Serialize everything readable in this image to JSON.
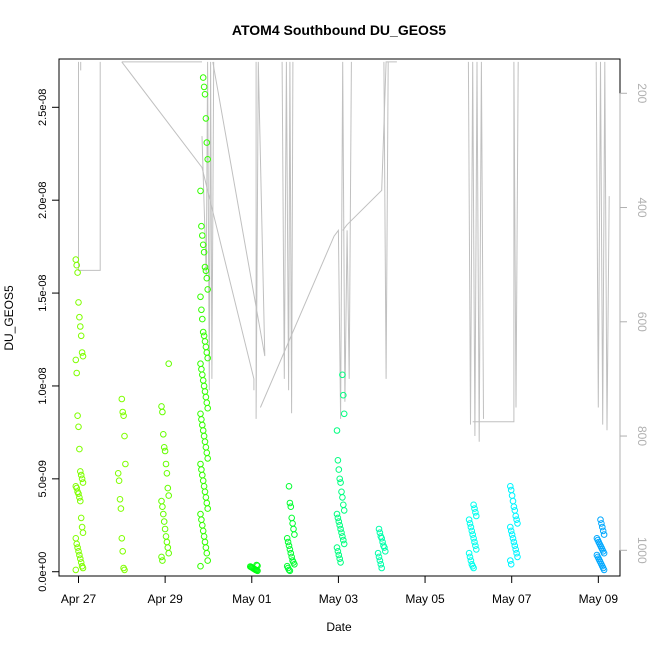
{
  "chart_data": {
    "type": "scatter",
    "title": "ATOM4 Southbound DU_GEOS5",
    "xlabel": "Date",
    "ylabel": "DU_GEOS5",
    "x_tick_labels": [
      "Apr 27",
      "Apr 29",
      "May 01",
      "May 03",
      "May 05",
      "May 07",
      "May 09"
    ],
    "y_tick_labels": [
      "0.0e+00",
      "5.0e-09",
      "1.0e-08",
      "1.5e-08",
      "2.0e-08",
      "2.5e-08"
    ],
    "y_tick_values": [
      0,
      5e-09,
      1e-08,
      1.5e-08,
      2e-08,
      2.5e-08
    ],
    "y2_tick_labels": [
      "200",
      "400",
      "600",
      "800",
      "1000"
    ],
    "y2_tick_values": [
      200,
      400,
      600,
      800,
      1000
    ],
    "xlim_days_from_apr27": [
      -0.45,
      12.5
    ],
    "ylim": [
      -2.3e-10,
      2.76e-08
    ],
    "y2lim": [
      1045,
      140
    ],
    "clusters": [
      {
        "day": 0.02,
        "color": "#7fff00",
        "values": [
          1.68e-08,
          1.65e-08,
          1.61e-08,
          1.45e-08,
          1.37e-08,
          1.32e-08,
          1.27e-08,
          1.18e-08,
          1.16e-08,
          1.14e-08,
          1.07e-08,
          8.4e-09,
          7.8e-09,
          6.6e-09,
          5.4e-09,
          5.2e-09,
          5e-09,
          4.8e-09,
          4.6e-09,
          4.5e-09,
          4.3e-09,
          4.2e-09,
          4e-09,
          3.8e-09,
          2.9e-09,
          2.4e-09,
          2.1e-09,
          1.8e-09,
          1.5e-09,
          1.3e-09,
          1.1e-09,
          9e-10,
          7e-10,
          5e-10,
          3e-10,
          2e-10,
          1e-10
        ]
      },
      {
        "day": 1.0,
        "color": "#7fff00",
        "values": [
          9.3e-09,
          8.6e-09,
          8.4e-09,
          7.3e-09,
          5.8e-09,
          5.3e-09,
          4.9e-09,
          3.9e-09,
          3.4e-09,
          1.8e-09,
          1.1e-09,
          2e-10,
          1e-10
        ]
      },
      {
        "day": 2.0,
        "color": "#66ff00",
        "values": [
          1.12e-08,
          8.9e-09,
          8.6e-09,
          7.4e-09,
          6.7e-09,
          6.5e-09,
          5.8e-09,
          5.3e-09,
          4.5e-09,
          4.1e-09,
          3.8e-09,
          3.5e-09,
          3.1e-09,
          2.7e-09,
          2.3e-09,
          1.9e-09,
          1.6e-09,
          1.3e-09,
          1e-09,
          8e-10,
          6e-10
        ]
      },
      {
        "day": 2.9,
        "color": "#33ff00",
        "values": [
          2.66e-08,
          2.61e-08,
          2.57e-08,
          2.44e-08,
          2.31e-08,
          2.22e-08,
          2.05e-08,
          1.86e-08,
          1.81e-08,
          1.76e-08,
          1.72e-08,
          1.64e-08,
          1.62e-08,
          1.58e-08,
          1.52e-08,
          1.48e-08,
          1.41e-08,
          1.36e-08,
          1.29e-08,
          1.27e-08,
          1.24e-08,
          1.21e-08,
          1.18e-08,
          1.15e-08,
          1.12e-08,
          1.09e-08,
          1.06e-08,
          1.03e-08,
          1e-08,
          9.7e-09,
          9.4e-09,
          9.1e-09,
          8.8e-09,
          8.5e-09,
          8.2e-09,
          7.9e-09,
          7.6e-09,
          7.3e-09,
          7e-09,
          6.7e-09,
          6.4e-09,
          6.1e-09,
          5.8e-09,
          5.5e-09,
          5.2e-09,
          4.9e-09,
          4.6e-09,
          4.3e-09,
          4e-09,
          3.7e-09,
          3.4e-09,
          3.1e-09,
          2.8e-09,
          2.5e-09,
          2.2e-09,
          1.9e-09,
          1.6e-09,
          1.3e-09,
          1e-09,
          6e-10,
          3e-10
        ]
      },
      {
        "day": 4.05,
        "color": "#00ff10",
        "values": [
          3.6e-10,
          3.2e-10,
          2.8e-10,
          2.5e-10,
          2.2e-10,
          1.9e-10,
          1.6e-10,
          1.3e-10,
          1e-10,
          8e-11,
          5e-11
        ]
      },
      {
        "day": 4.9,
        "color": "#00ff30",
        "values": [
          4.6e-09,
          3.7e-09,
          3.5e-09,
          2.9e-09,
          2.6e-09,
          2.3e-09,
          2e-09,
          1.8e-09,
          1.6e-09,
          1.4e-09,
          1.2e-09,
          1e-09,
          8e-10,
          6e-10,
          5e-10,
          4e-10,
          3e-10,
          2e-10,
          1e-10,
          5e-11
        ]
      },
      {
        "day": 6.05,
        "color": "#00ff80",
        "values": [
          1.06e-08,
          9.5e-09,
          8.5e-09,
          7.6e-09,
          6e-09,
          5.5e-09,
          5e-09,
          4.8e-09,
          4.3e-09,
          4e-09,
          3.6e-09,
          3.3e-09,
          3.1e-09,
          2.9e-09,
          2.7e-09,
          2.5e-09,
          2.3e-09,
          2.1e-09,
          1.9e-09,
          1.7e-09,
          1.5e-09,
          1.3e-09,
          1.1e-09,
          9e-10,
          7e-10,
          5e-10
        ]
      },
      {
        "day": 7.0,
        "color": "#00ffaa",
        "values": [
          2.3e-09,
          2.1e-09,
          1.9e-09,
          1.8e-09,
          1.6e-09,
          1.4e-09,
          1.3e-09,
          1.1e-09,
          1e-09,
          8e-10,
          6e-10,
          4e-10,
          2e-10
        ]
      },
      {
        "day": 9.1,
        "color": "#00ffee",
        "values": [
          3.6e-09,
          3.4e-09,
          3.2e-09,
          3e-09,
          2.8e-09,
          2.6e-09,
          2.4e-09,
          2.2e-09,
          2e-09,
          1.8e-09,
          1.6e-09,
          1.4e-09,
          1.2e-09,
          1e-09,
          8e-10,
          6e-10,
          4e-10,
          3e-10,
          2e-10
        ]
      },
      {
        "day": 10.05,
        "color": "#00f5ff",
        "values": [
          4.6e-09,
          4.4e-09,
          4.1e-09,
          3.8e-09,
          3.5e-09,
          3.3e-09,
          3e-09,
          2.8e-09,
          2.6e-09,
          2.4e-09,
          2.2e-09,
          2e-09,
          1.8e-09,
          1.6e-09,
          1.4e-09,
          1.2e-09,
          1e-09,
          8e-10,
          6e-10,
          4e-10
        ]
      },
      {
        "day": 12.05,
        "color": "#00a8ff",
        "values": [
          2.8e-09,
          2.6e-09,
          2.4e-09,
          2.2e-09,
          2e-09,
          1.8e-09,
          1.7e-09,
          1.6e-09,
          1.5e-09,
          1.4e-09,
          1.3e-09,
          1.2e-09,
          1.1e-09,
          1e-09,
          9e-10,
          8e-10,
          7e-10,
          6e-10,
          5e-10,
          4e-10,
          3e-10,
          2e-10,
          1e-10
        ]
      }
    ],
    "pressure_trace": {
      "color": "#c0c0c0",
      "segments": [
        [
          [
            0.0,
            145
          ],
          [
            0.0,
            510
          ],
          [
            0.5,
            510
          ],
          [
            0.5,
            145
          ]
        ],
        [
          [
            0.05,
            145
          ],
          [
            0.05,
            160
          ]
        ],
        [
          [
            1.0,
            145
          ],
          [
            2.85,
            145
          ]
        ],
        [
          [
            1.0,
            145
          ],
          [
            2.85,
            330
          ],
          [
            4.05,
            700
          ],
          [
            4.05,
            720
          ]
        ],
        [
          [
            2.85,
            275
          ],
          [
            2.95,
            520
          ],
          [
            2.98,
            145
          ],
          [
            3.02,
            720
          ],
          [
            3.05,
            145
          ],
          [
            3.08,
            700
          ],
          [
            3.12,
            145
          ]
        ],
        [
          [
            3.1,
            145
          ],
          [
            4.3,
            660
          ],
          [
            4.15,
            145
          ],
          [
            4.1,
            770
          ],
          [
            4.1,
            145
          ]
        ],
        [
          [
            4.7,
            145
          ],
          [
            4.75,
            700
          ],
          [
            4.8,
            145
          ],
          [
            4.85,
            720
          ],
          [
            4.88,
            145
          ],
          [
            4.92,
            760
          ],
          [
            4.95,
            145
          ]
        ],
        [
          [
            4.2,
            750
          ],
          [
            5.9,
            450
          ],
          [
            6.0,
            440
          ],
          [
            6.05,
            770
          ],
          [
            6.1,
            145
          ],
          [
            6.15,
            740
          ],
          [
            6.2,
            440
          ],
          [
            6.25,
            700
          ],
          [
            6.3,
            145
          ]
        ],
        [
          [
            6.1,
            440
          ],
          [
            6.2,
            430
          ],
          [
            7.0,
            370
          ],
          [
            7.1,
            145
          ],
          [
            7.35,
            145
          ]
        ],
        [
          [
            7.05,
            145
          ],
          [
            7.1,
            700
          ],
          [
            7.15,
            145
          ]
        ],
        [
          [
            9.0,
            145
          ],
          [
            9.05,
            780
          ],
          [
            9.1,
            145
          ],
          [
            9.15,
            800
          ],
          [
            9.2,
            145
          ],
          [
            9.25,
            810
          ],
          [
            9.3,
            145
          ],
          [
            9.35,
            770
          ]
        ],
        [
          [
            9.1,
            775
          ],
          [
            10.05,
            775
          ],
          [
            10.05,
            145
          ],
          [
            10.1,
            750
          ],
          [
            10.15,
            145
          ]
        ],
        [
          [
            11.95,
            145
          ],
          [
            12.0,
            750
          ],
          [
            12.05,
            145
          ],
          [
            12.1,
            780
          ],
          [
            12.15,
            145
          ],
          [
            12.2,
            790
          ],
          [
            12.25,
            380
          ]
        ]
      ]
    }
  }
}
